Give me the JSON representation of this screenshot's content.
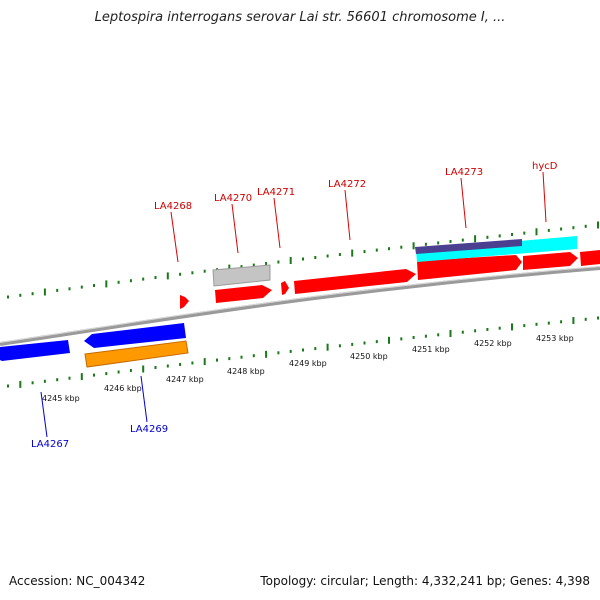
{
  "title": "Leptospira interrogans serovar Lai str. 56601 chromosome I, ...",
  "footer": {
    "accession": "Accession: NC_004342",
    "summary": "Topology: circular; Length: 4,332,241 bp; Genes: 4,398"
  },
  "colors": {
    "plus_strand_gene": "#ff0000",
    "minus_strand_gene": "#0000ff",
    "pseudo_gene": "#c0c0c0",
    "cds_cyan": "#00ffff",
    "cds_orange": "#ff9900",
    "feature_purple": "#4b3f8f",
    "tick_green": "#1a7a1a",
    "backbone": "#8a8a8a",
    "plus_label": "#cc0000",
    "minus_label": "#0000cc"
  },
  "axis": {
    "unit": "kbp",
    "ticks": [
      "4245 kbp",
      "4246 kbp",
      "4247 kbp",
      "4248 kbp",
      "4249 kbp",
      "4250 kbp",
      "4251 kbp",
      "4252 kbp",
      "4253 kbp"
    ]
  },
  "genes": {
    "plus_strand_labels": [
      "LA4268",
      "LA4270",
      "LA4271",
      "LA4272",
      "LA4273",
      "hycD"
    ],
    "minus_strand_labels": [
      "LA4267",
      "LA4269"
    ]
  }
}
